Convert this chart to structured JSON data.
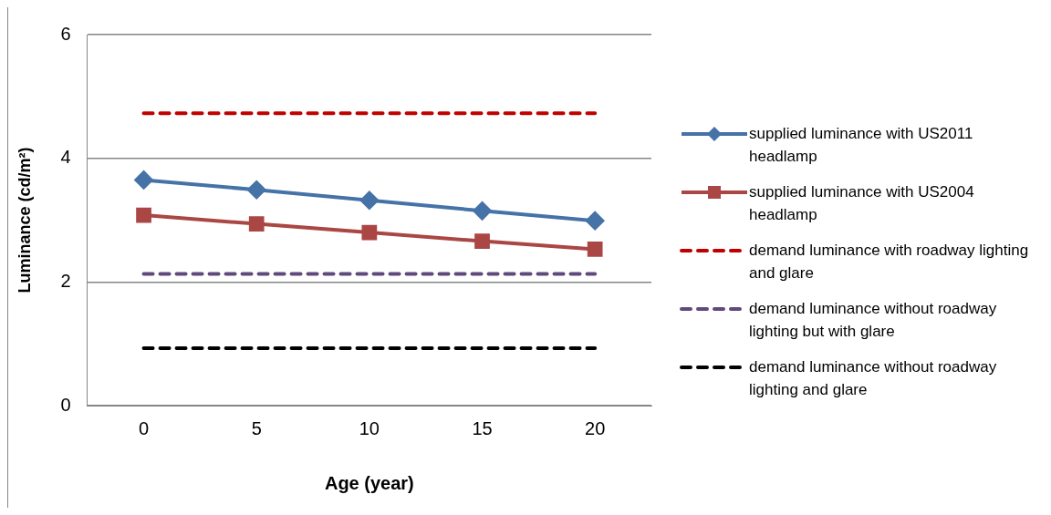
{
  "chart_data": {
    "type": "line",
    "xlabel": "Age (year)",
    "ylabel": "Luminance (cd/m²)",
    "categories": [
      "0",
      "5",
      "10",
      "15",
      "20"
    ],
    "ylim": [
      0,
      6
    ],
    "yticks": [
      0,
      2,
      4,
      6
    ],
    "grid": "y",
    "legend": "right",
    "series": [
      {
        "name": "supplied luminance with US2011 headlamp",
        "color": "#4572a7",
        "values": [
          3.65,
          3.49,
          3.32,
          3.15,
          2.99
        ],
        "marker": "diamond",
        "line_style": "solid"
      },
      {
        "name": "supplied luminance with US2004 headlamp",
        "color": "#aa4643",
        "values": [
          3.08,
          2.94,
          2.8,
          2.66,
          2.53
        ],
        "marker": "square",
        "line_style": "solid"
      },
      {
        "name": "demand luminance with roadway lighting and glare",
        "color": "#c00000",
        "values": [
          4.73,
          4.73,
          4.73,
          4.73,
          4.73
        ],
        "marker": "none",
        "line_style": "dashed"
      },
      {
        "name": "demand luminance without roadway lighting but with glare",
        "color": "#604a7b",
        "values": [
          2.13,
          2.13,
          2.13,
          2.13,
          2.13
        ],
        "marker": "none",
        "line_style": "dashed"
      },
      {
        "name": "demand luminance without roadway lighting and glare",
        "color": "#000000",
        "values": [
          0.93,
          0.93,
          0.93,
          0.93,
          0.93
        ],
        "marker": "none",
        "line_style": "dashed"
      }
    ]
  }
}
